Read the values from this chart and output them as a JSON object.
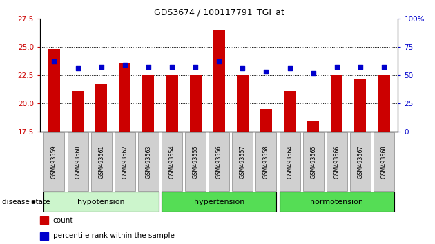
{
  "title": "GDS3674 / 100117791_TGI_at",
  "samples": [
    "GSM493559",
    "GSM493560",
    "GSM493561",
    "GSM493562",
    "GSM493563",
    "GSM493554",
    "GSM493555",
    "GSM493556",
    "GSM493557",
    "GSM493558",
    "GSM493564",
    "GSM493565",
    "GSM493566",
    "GSM493567",
    "GSM493568"
  ],
  "counts": [
    24.8,
    21.1,
    21.7,
    23.6,
    22.5,
    22.5,
    22.5,
    26.5,
    22.5,
    19.5,
    21.1,
    18.5,
    22.5,
    22.1,
    22.5
  ],
  "percentiles": [
    62,
    56,
    57,
    59,
    57,
    57,
    57,
    62,
    56,
    53,
    56,
    52,
    57,
    57,
    57
  ],
  "groups": [
    {
      "label": "hypotension",
      "start": 0,
      "end": 5,
      "color": "#ccf5cc"
    },
    {
      "label": "hypertension",
      "start": 5,
      "end": 10,
      "color": "#66dd66"
    },
    {
      "label": "normotension",
      "start": 10,
      "end": 15,
      "color": "#66dd66"
    }
  ],
  "ylim_left": [
    17.5,
    27.5
  ],
  "yticks_left": [
    17.5,
    20.0,
    22.5,
    25.0,
    27.5
  ],
  "ylim_right": [
    0,
    100
  ],
  "yticks_right": [
    0,
    25,
    50,
    75,
    100
  ],
  "bar_color": "#cc0000",
  "dot_color": "#0000cc",
  "bar_width": 0.5,
  "background_color": "#ffffff",
  "left_label_color": "#cc0000",
  "right_label_color": "#0000cc",
  "tick_box_color": "#d0d0d0",
  "tick_box_edge": "#888888"
}
